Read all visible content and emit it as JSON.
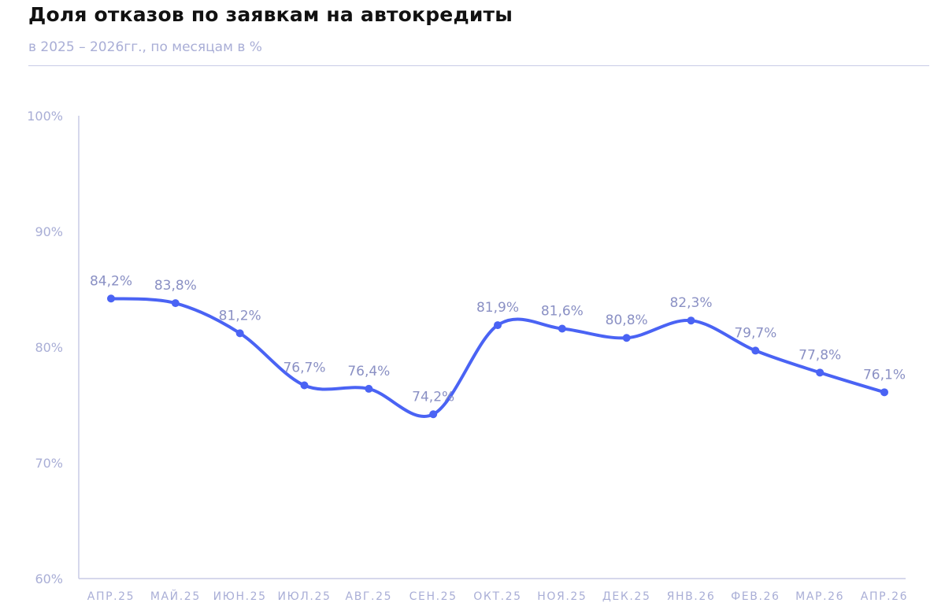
{
  "title": "Доля отказов по заявкам на автокредиты",
  "subtitle": "в 2025 – 2026гг., по месяцам в %",
  "colors": {
    "line": "#4a63f4",
    "axis": "#c9cce6",
    "tick_text": "#a9aed6",
    "label_text": "#8a90c4"
  },
  "chart_data": {
    "type": "line",
    "title": "Доля отказов по заявкам на автокредиты",
    "subtitle": "в 2025 – 2026гг., по месяцам в %",
    "xlabel": "",
    "ylabel": "",
    "ylim": [
      60,
      100
    ],
    "yticks": [
      60,
      70,
      80,
      90,
      100
    ],
    "ytick_labels": [
      "60%",
      "70%",
      "80%",
      "90%",
      "100%"
    ],
    "grid": false,
    "categories": [
      "АПР.25",
      "МАЙ.25",
      "ИЮН.25",
      "ИЮЛ.25",
      "АВГ.25",
      "СЕН.25",
      "ОКТ.25",
      "НОЯ.25",
      "ДЕК.25",
      "ЯНВ.26",
      "ФЕВ.26",
      "МАР.26",
      "АПР.26"
    ],
    "series": [
      {
        "values": [
          84.2,
          83.8,
          81.2,
          76.7,
          76.4,
          74.2,
          81.9,
          81.6,
          80.8,
          82.3,
          79.7,
          77.8,
          76.1
        ],
        "labels": [
          "84,2%",
          "83,8%",
          "81,2%",
          "76,7%",
          "76,4%",
          "74,2%",
          "81,9%",
          "81,6%",
          "80,8%",
          "82,3%",
          "79,7%",
          "77,8%",
          "76,1%"
        ]
      }
    ]
  }
}
